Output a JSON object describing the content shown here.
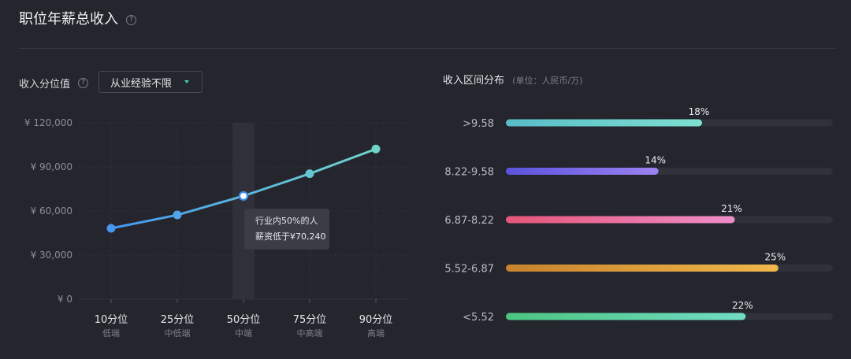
{
  "header": {
    "title": "职位年薪总收入",
    "help_icon": "?"
  },
  "controls": {
    "percentile_label": "收入分位值",
    "help_icon": "?",
    "experience_select": "从业经验不限"
  },
  "distribution": {
    "title": "收入区间分布",
    "unit": "(单位：人民币/万)"
  },
  "tooltip": {
    "line1": "行业内50%的人",
    "line2": "薪资低于¥70,240"
  },
  "chart_data": [
    {
      "type": "line",
      "categories": [
        "10分位",
        "25分位",
        "50分位",
        "75分位",
        "90分位"
      ],
      "category_sublabels": [
        "低端",
        "中低端",
        "中端",
        "中高端",
        "高端"
      ],
      "values": [
        48200,
        57300,
        70240,
        85400,
        102200
      ],
      "y_ticks": [
        "¥ 0",
        "¥ 30,000",
        "¥ 60,000",
        "¥ 90,000",
        "¥ 120,000"
      ],
      "ylim": [
        0,
        120000
      ],
      "grid": true,
      "highlighted_index": 2,
      "colors": {
        "start": "#4596f0",
        "end": "#6fd4c8"
      }
    },
    {
      "type": "bar",
      "orientation": "horizontal",
      "categories": [
        ">9.58",
        "8.22-9.58",
        "6.87-8.22",
        "5.52-6.87",
        "<5.52"
      ],
      "values": [
        18,
        14,
        21,
        25,
        22
      ],
      "value_labels": [
        "18%",
        "14%",
        "21%",
        "25%",
        "22%"
      ],
      "xlim": [
        0,
        30
      ],
      "colors": [
        [
          "#58bcc8",
          "#7ee0d0"
        ],
        [
          "#5b53de",
          "#9c82f2"
        ],
        [
          "#e55679",
          "#ee8ec8"
        ],
        [
          "#c8832c",
          "#f0b84c"
        ],
        [
          "#4cc581",
          "#72dcc4"
        ]
      ]
    }
  ]
}
